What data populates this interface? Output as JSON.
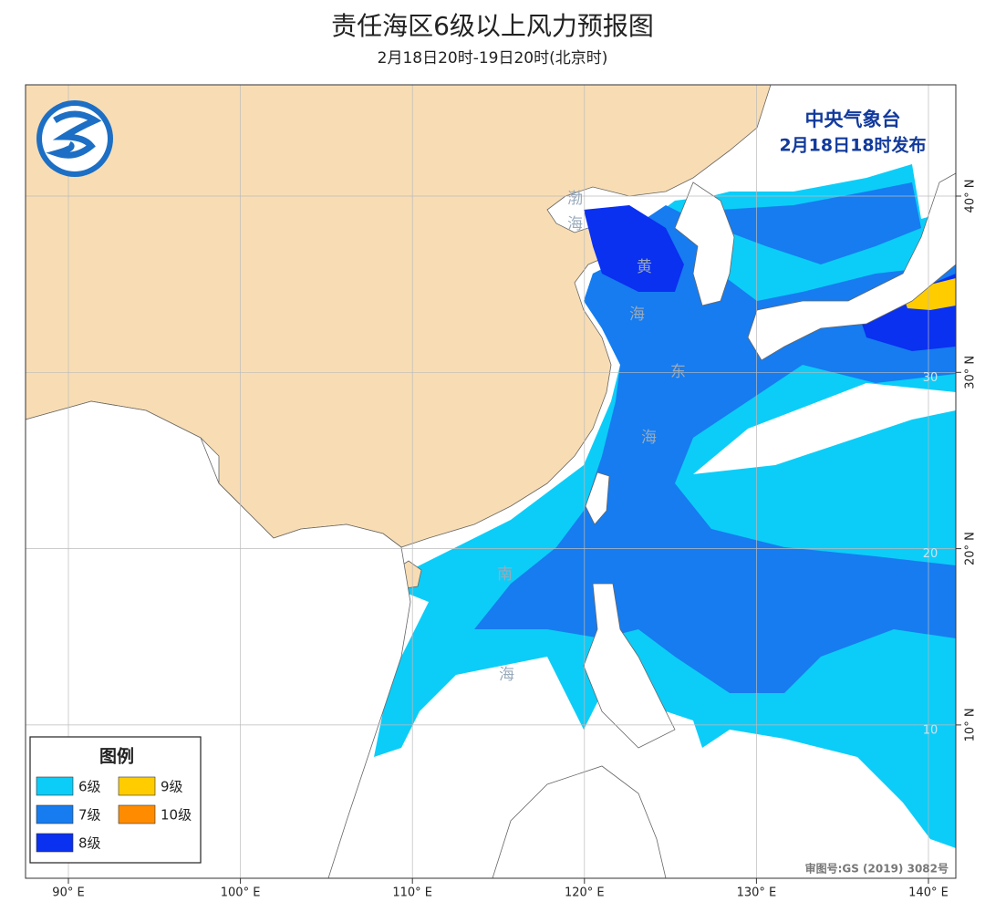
{
  "header": {
    "title": "责任海区6级以上风力预报图",
    "subtitle": "2月18日20时-19日20时(北京时)"
  },
  "issuer": {
    "name": "中央气象台",
    "time": "2月18日18时发布"
  },
  "legend": {
    "title": "图例",
    "items": [
      {
        "label": "6级",
        "color": "#0ccdf8"
      },
      {
        "label": "7级",
        "color": "#167cf0"
      },
      {
        "label": "8级",
        "color": "#0a30f0"
      },
      {
        "label": "9级",
        "color": "#ffcc00"
      },
      {
        "label": "10级",
        "color": "#ff8c00"
      }
    ]
  },
  "axes": {
    "longitudes": [
      {
        "value": 90,
        "label": "90° E"
      },
      {
        "value": 100,
        "label": "100° E"
      },
      {
        "value": 110,
        "label": "110° E"
      },
      {
        "value": 120,
        "label": "120° E"
      },
      {
        "value": 130,
        "label": "130° E"
      },
      {
        "value": 140,
        "label": "140° E"
      }
    ],
    "latitudes": [
      {
        "value": 40,
        "label": "40° N"
      },
      {
        "value": 30,
        "label": "30° N"
      },
      {
        "value": 20,
        "label": "20° N"
      },
      {
        "value": 10,
        "label": "10° N"
      }
    ],
    "inner_latitudes": [
      {
        "value": 30,
        "label": "30"
      },
      {
        "value": 20,
        "label": "20"
      },
      {
        "value": 10,
        "label": "10"
      }
    ]
  },
  "sea_labels": [
    "渤",
    "海",
    "黄",
    "海",
    "东",
    "海",
    "南",
    "海"
  ],
  "approval": "审图号:GS (2019) 3082号"
}
